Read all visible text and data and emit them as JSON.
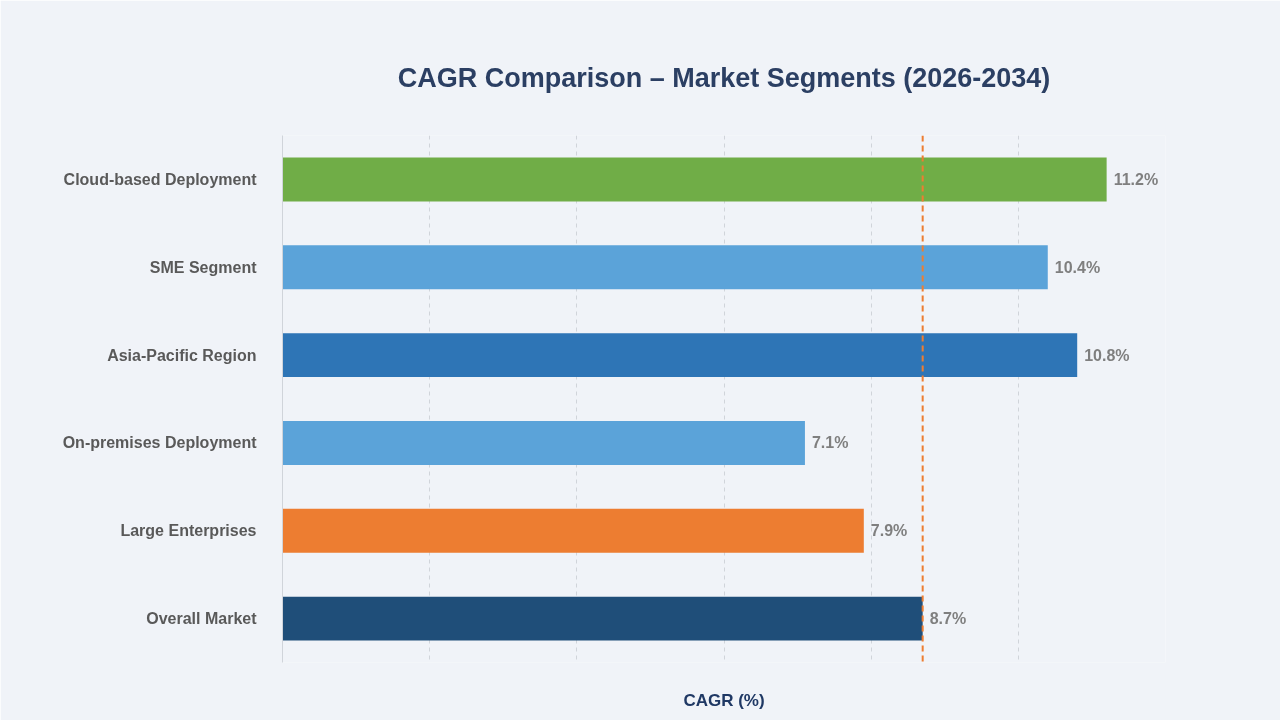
{
  "chart_data": {
    "type": "bar",
    "orientation": "horizontal",
    "title": "CAGR Comparison – Market Segments (2026-2034)",
    "xlabel": "CAGR (%)",
    "categories": [
      "Cloud-based Deployment",
      "SME Segment",
      "Asia-Pacific Region",
      "On-premises Deployment",
      "Large Enterprises",
      "Overall Market"
    ],
    "values": [
      11.2,
      10.4,
      10.8,
      7.1,
      7.9,
      8.7
    ],
    "colors": [
      "#70ad47",
      "#5ba3d9",
      "#2e75b6",
      "#5ba3d9",
      "#ed7d31",
      "#1f4e79"
    ],
    "value_labels": [
      "11.2%",
      "10.4%",
      "10.8%",
      "7.1%",
      "7.9%",
      "8.7%"
    ],
    "xlim": [
      0,
      12
    ],
    "xticks": [
      {
        "value": 0,
        "label": null
      },
      {
        "value": 2,
        "label": null
      },
      {
        "value": 4,
        "label": null
      },
      {
        "value": 6,
        "label": null
      },
      {
        "value": 8,
        "label": null
      },
      {
        "value": 10,
        "label": null
      },
      {
        "value": 12,
        "label": null
      }
    ],
    "grid": "x",
    "tick_labels": "y",
    "ref_lines": [
      {
        "axis": "x",
        "value": 8.7,
        "color": "#ed7d31",
        "line_style": "dashed"
      }
    ]
  }
}
